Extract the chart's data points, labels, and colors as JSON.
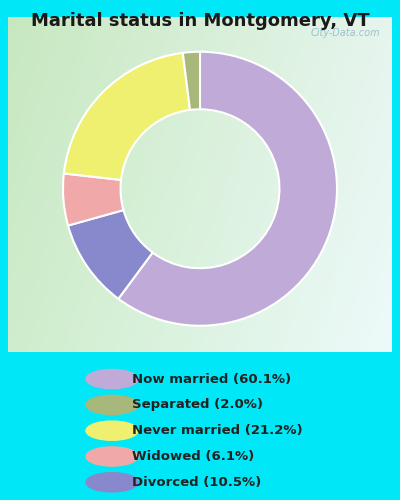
{
  "title": "Marital status in Montgomery, VT",
  "slices": [
    60.1,
    10.5,
    6.1,
    21.2,
    2.0
  ],
  "colors": [
    "#c0aad8",
    "#8888cc",
    "#f0a8a8",
    "#f0f070",
    "#a8b87a"
  ],
  "labels": [
    "Now married (60.1%)",
    "Separated (2.0%)",
    "Never married (21.2%)",
    "Widowed (6.1%)",
    "Divorced (10.5%)"
  ],
  "legend_colors": [
    "#c0aad8",
    "#a8b87a",
    "#f0f070",
    "#f0a8a8",
    "#8888cc"
  ],
  "legend_labels": [
    "Now married (60.1%)",
    "Separated (2.0%)",
    "Never married (21.2%)",
    "Widowed (6.1%)",
    "Divorced (10.5%)"
  ],
  "bg_cyan": "#00e8f8",
  "chart_bg_tl": "#d0ead0",
  "chart_bg_br": "#e8f8f0",
  "title_fontsize": 13,
  "watermark": "City-Data.com",
  "start_angle": 90,
  "donut_width": 0.42
}
